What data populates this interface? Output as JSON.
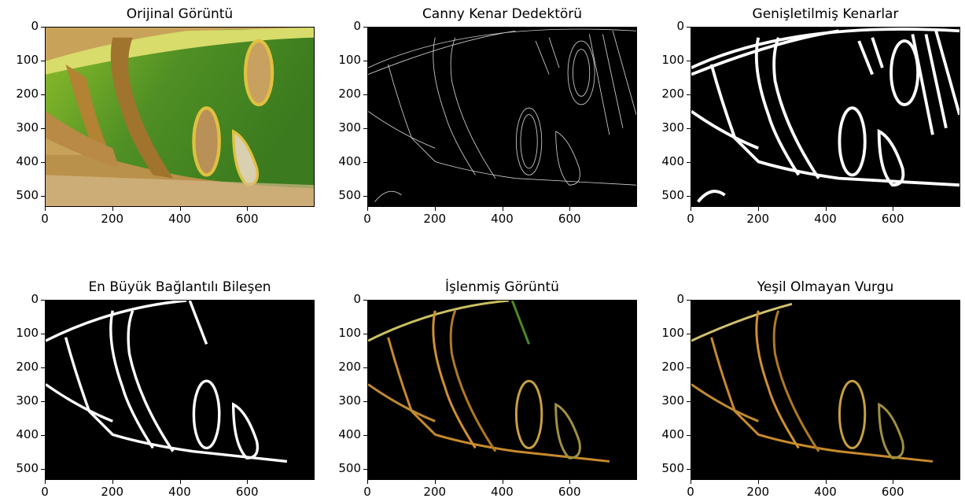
{
  "figure": {
    "panels": [
      {
        "id": "p1",
        "title": "Orijinal Görüntü"
      },
      {
        "id": "p2",
        "title": "Canny Kenar Dedektörü"
      },
      {
        "id": "p3",
        "title": "Genişletilmiş Kenarlar"
      },
      {
        "id": "p4",
        "title": "En Büyük Bağlantılı Bileşen"
      },
      {
        "id": "p5",
        "title": "İşlenmiş Görüntü"
      },
      {
        "id": "p6",
        "title": "Yeşil Olmayan Vurgu"
      }
    ]
  },
  "chart_data": [
    {
      "type": "image",
      "title": "Orijinal Görüntü",
      "xlim": [
        0,
        800
      ],
      "ylim": [
        533,
        0
      ],
      "x_ticks": [
        "0",
        "200",
        "400",
        "600"
      ],
      "y_ticks": [
        "0",
        "100",
        "200",
        "300",
        "400",
        "500"
      ]
    },
    {
      "type": "image",
      "title": "Canny Kenar Dedektörü",
      "xlim": [
        0,
        800
      ],
      "ylim": [
        533,
        0
      ],
      "x_ticks": [
        "0",
        "200",
        "400",
        "600"
      ],
      "y_ticks": [
        "0",
        "100",
        "200",
        "300",
        "400",
        "500"
      ]
    },
    {
      "type": "image",
      "title": "Genişletilmiş Kenarlar",
      "xlim": [
        0,
        800
      ],
      "ylim": [
        533,
        0
      ],
      "x_ticks": [
        "0",
        "200",
        "400",
        "600"
      ],
      "y_ticks": [
        "0",
        "100",
        "200",
        "300",
        "400",
        "500"
      ]
    },
    {
      "type": "image",
      "title": "En Büyük Bağlantılı Bileşen",
      "xlim": [
        0,
        800
      ],
      "ylim": [
        533,
        0
      ],
      "x_ticks": [
        "0",
        "200",
        "400",
        "600"
      ],
      "y_ticks": [
        "0",
        "100",
        "200",
        "300",
        "400",
        "500"
      ]
    },
    {
      "type": "image",
      "title": "İşlenmiş Görüntü",
      "xlim": [
        0,
        800
      ],
      "ylim": [
        533,
        0
      ],
      "x_ticks": [
        "0",
        "200",
        "400",
        "600"
      ],
      "y_ticks": [
        "0",
        "100",
        "200",
        "300",
        "400",
        "500"
      ]
    },
    {
      "type": "image",
      "title": "Yeşil Olmayan Vurgu",
      "xlim": [
        0,
        800
      ],
      "ylim": [
        533,
        0
      ],
      "x_ticks": [
        "0",
        "200",
        "400",
        "600"
      ],
      "y_ticks": [
        "0",
        "100",
        "200",
        "300",
        "400",
        "500"
      ]
    }
  ],
  "colors": {
    "leaf_green": "#5d9a2a",
    "lesion_brown": "#b07a2a",
    "edge_white": "#ffffff",
    "background": "#000000"
  }
}
